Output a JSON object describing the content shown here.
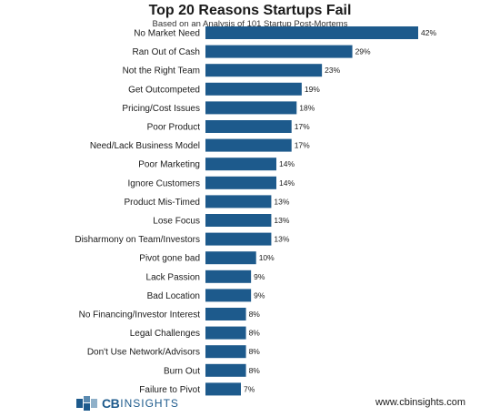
{
  "chart_data": {
    "type": "bar",
    "orientation": "horizontal",
    "title": "Top 20 Reasons Startups Fail",
    "subtitle": "Based on an Analysis of 101 Startup Post-Mortems",
    "categories": [
      "No Market Need",
      "Ran Out of Cash",
      "Not the Right Team",
      "Get Outcompeted",
      "Pricing/Cost Issues",
      "Poor Product",
      "Need/Lack Business Model",
      "Poor Marketing",
      "Ignore Customers",
      "Product Mis-Timed",
      "Lose Focus",
      "Disharmony on Team/Investors",
      "Pivot gone bad",
      "Lack Passion",
      "Bad Location",
      "No Financing/Investor Interest",
      "Legal Challenges",
      "Don't Use Network/Advisors",
      "Burn Out",
      "Failure to Pivot"
    ],
    "values": [
      42,
      29,
      23,
      19,
      18,
      17,
      17,
      14,
      14,
      13,
      13,
      13,
      10,
      9,
      9,
      8,
      8,
      8,
      8,
      7
    ],
    "value_labels": [
      "42%",
      "29%",
      "23%",
      "19%",
      "18%",
      "17%",
      "17%",
      "14%",
      "14%",
      "13%",
      "13%",
      "13%",
      "10%",
      "9%",
      "9%",
      "8%",
      "8%",
      "8%",
      "8%",
      "7%"
    ],
    "xlim": [
      0,
      42
    ],
    "bar_color": "#1d5a8c",
    "grid": false
  },
  "footer": {
    "logo_cb": "CB",
    "logo_insights": "INSIGHTS",
    "url": "www.cbinsights.com"
  },
  "colors": {
    "logo": "#1d5a8c",
    "bar": "#1d5a8c"
  }
}
